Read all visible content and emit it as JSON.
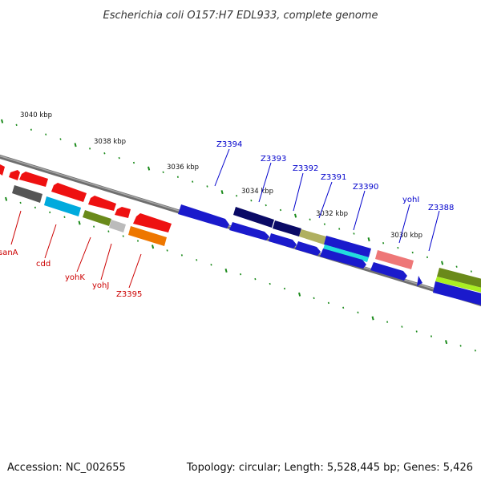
{
  "title": "Escherichia coli O157:H7 EDL933, complete genome",
  "footer": {
    "accession": "Accession: NC_002655",
    "summary": "Topology: circular; Length: 5,528,445 bp; Genes: 5,426"
  },
  "scale_labels": [
    "3040 kbp",
    "3038 kbp",
    "3036 kbp",
    "3034 kbp",
    "3032 kbp",
    "3030 kbp"
  ],
  "colors": {
    "backbone": "#7a7a7a",
    "tick": "#1a8a1a",
    "forward_label": "#0000cc",
    "reverse_label": "#cc0000"
  },
  "forward_gene_labels": [
    "Z3394",
    "Z3393",
    "Z3392",
    "Z3391",
    "Z3390",
    "yohI",
    "Z3388"
  ],
  "reverse_gene_labels": [
    "sanA",
    "cdd",
    "yohK",
    "yohJ",
    "Z3395"
  ]
}
